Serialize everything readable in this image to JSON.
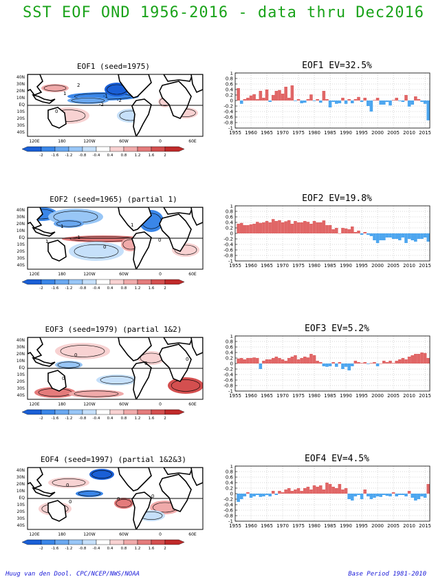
{
  "page_title": "SST EOF OND 1956-2016 - data thru Dec2016",
  "footer": {
    "credit": "Huug van den Dool. CPC/NCEP/NWS/NOAA",
    "base_period": "Base Period 1981-2010"
  },
  "map_axes": {
    "lat_labels": [
      "40N",
      "30N",
      "20N",
      "10N",
      "EQ",
      "10S",
      "20S",
      "30S",
      "40S"
    ],
    "lon_labels": [
      "120E",
      "180",
      "120W",
      "60W",
      "0",
      "60E"
    ]
  },
  "colorbar": {
    "labels": [
      "-2",
      "-1.6",
      "-1.2",
      "-0.8",
      "-0.4",
      "0.4",
      "0.8",
      "1.2",
      "1.6",
      "2"
    ],
    "colors": [
      "#1a5fd6",
      "#3a86e8",
      "#6aa8f0",
      "#98c6f6",
      "#c6e0fa",
      "#ffffff",
      "#f8d2d2",
      "#f0aaaa",
      "#e47b7b",
      "#d44f4f",
      "#c02a2a"
    ]
  },
  "colors": {
    "title": "#1aa31a",
    "footer": "#1a1ad8",
    "positive_bar": "#e06666",
    "negative_bar": "#4da6ef"
  },
  "panels": [
    {
      "map_title": "EOF1  (seed=1975)",
      "map_labels": [
        "2",
        "1",
        "-1",
        "-2",
        "-2",
        "0"
      ],
      "chart_data": {
        "type": "bar",
        "title": "EOF1  EV=32.5%",
        "x_tick_labels": [
          "1955",
          "1960",
          "1965",
          "1970",
          "1975",
          "1980",
          "1985",
          "1990",
          "1995",
          "2000",
          "2005",
          "2010",
          "2015"
        ],
        "y_tick_labels": [
          "1",
          "0.8",
          "0.6",
          "0.4",
          "0.2",
          "0",
          "-0.2",
          "-0.4",
          "-0.6",
          "-0.8",
          "-1"
        ],
        "ylim": [
          -1,
          1
        ],
        "grid": true,
        "x": [
          1956,
          1957,
          1958,
          1959,
          1960,
          1961,
          1962,
          1963,
          1964,
          1965,
          1966,
          1967,
          1968,
          1969,
          1970,
          1971,
          1972,
          1973,
          1974,
          1975,
          1976,
          1977,
          1978,
          1979,
          1980,
          1981,
          1982,
          1983,
          1984,
          1985,
          1986,
          1987,
          1988,
          1989,
          1990,
          1991,
          1992,
          1993,
          1994,
          1995,
          1996,
          1997,
          1998,
          1999,
          2000,
          2001,
          2002,
          2003,
          2004,
          2005,
          2006,
          2007,
          2008,
          2009,
          2010,
          2011,
          2012,
          2013,
          2014,
          2015,
          2016
        ],
        "values": [
          0.45,
          -0.12,
          0.05,
          0.1,
          0.18,
          0.23,
          0.05,
          0.35,
          0.1,
          0.4,
          -0.05,
          0.2,
          0.35,
          0.38,
          0.25,
          0.5,
          0.1,
          0.55,
          -0.02,
          0.05,
          -0.1,
          -0.08,
          0.05,
          0.22,
          -0.02,
          0.05,
          -0.08,
          0.35,
          0.05,
          -0.25,
          -0.05,
          -0.12,
          -0.1,
          0.1,
          -0.12,
          0.05,
          -0.1,
          0.05,
          0.13,
          -0.05,
          0.1,
          -0.2,
          -0.4,
          0.02,
          0.1,
          -0.15,
          -0.15,
          -0.05,
          -0.18,
          0.02,
          0.1,
          -0.02,
          -0.05,
          0.2,
          -0.22,
          -0.15,
          0.15,
          0.05,
          -0.05,
          -0.12,
          -0.72
        ]
      }
    },
    {
      "map_title": "EOF2  (seed=1965) (partial 1)",
      "map_labels": [
        "1",
        "-1",
        "1",
        "0",
        "1",
        "0"
      ],
      "chart_data": {
        "type": "bar",
        "title": "EOF2  EV=19.8%",
        "x_tick_labels": [
          "1955",
          "1960",
          "1965",
          "1970",
          "1975",
          "1980",
          "1985",
          "1990",
          "1995",
          "2000",
          "2005",
          "2010",
          "2015"
        ],
        "y_tick_labels": [
          "1",
          "0.8",
          "0.6",
          "0.4",
          "0.2",
          "0",
          "-0.2",
          "-0.4",
          "-0.6",
          "-0.8",
          "-1"
        ],
        "ylim": [
          -1,
          1
        ],
        "grid": true,
        "x": [
          1956,
          1957,
          1958,
          1959,
          1960,
          1961,
          1962,
          1963,
          1964,
          1965,
          1966,
          1967,
          1968,
          1969,
          1970,
          1971,
          1972,
          1973,
          1974,
          1975,
          1976,
          1977,
          1978,
          1979,
          1980,
          1981,
          1982,
          1983,
          1984,
          1985,
          1986,
          1987,
          1988,
          1989,
          1990,
          1991,
          1992,
          1993,
          1994,
          1995,
          1996,
          1997,
          1998,
          1999,
          2000,
          2001,
          2002,
          2003,
          2004,
          2005,
          2006,
          2007,
          2008,
          2009,
          2010,
          2011,
          2012,
          2013,
          2014,
          2015,
          2016
        ],
        "values": [
          0.35,
          0.38,
          0.3,
          0.3,
          0.33,
          0.35,
          0.42,
          0.38,
          0.4,
          0.45,
          0.4,
          0.52,
          0.45,
          0.48,
          0.4,
          0.44,
          0.48,
          0.35,
          0.45,
          0.4,
          0.4,
          0.45,
          0.42,
          0.35,
          0.45,
          0.4,
          0.4,
          0.47,
          0.3,
          0.3,
          0.15,
          0.2,
          0.0,
          0.2,
          0.18,
          0.15,
          0.25,
          0.05,
          0.1,
          -0.05,
          0.05,
          -0.05,
          -0.1,
          -0.25,
          -0.35,
          -0.25,
          -0.25,
          -0.15,
          -0.15,
          -0.2,
          -0.2,
          -0.25,
          -0.15,
          -0.35,
          -0.2,
          -0.25,
          -0.3,
          -0.2,
          -0.2,
          -0.15,
          -0.3
        ]
      }
    },
    {
      "map_title": "EOF3  (seed=1979) (partial 1&2)",
      "map_labels": [
        "0",
        "0",
        "0",
        "0"
      ],
      "chart_data": {
        "type": "bar",
        "title": "EOF3  EV=5.2%",
        "x_tick_labels": [
          "1955",
          "1960",
          "1965",
          "1970",
          "1975",
          "1980",
          "1985",
          "1990",
          "1995",
          "2000",
          "2005",
          "2010",
          "2015"
        ],
        "y_tick_labels": [
          "1",
          "0.8",
          "0.6",
          "0.4",
          "0.2",
          "0",
          "-0.2",
          "-0.4",
          "-0.6",
          "-0.8",
          "-1"
        ],
        "ylim": [
          -1,
          1
        ],
        "grid": true,
        "x": [
          1956,
          1957,
          1958,
          1959,
          1960,
          1961,
          1962,
          1963,
          1964,
          1965,
          1966,
          1967,
          1968,
          1969,
          1970,
          1971,
          1972,
          1973,
          1974,
          1975,
          1976,
          1977,
          1978,
          1979,
          1980,
          1981,
          1982,
          1983,
          1984,
          1985,
          1986,
          1987,
          1988,
          1989,
          1990,
          1991,
          1992,
          1993,
          1994,
          1995,
          1996,
          1997,
          1998,
          1999,
          2000,
          2001,
          2002,
          2003,
          2004,
          2005,
          2006,
          2007,
          2008,
          2009,
          2010,
          2011,
          2012,
          2013,
          2014,
          2015,
          2016
        ],
        "values": [
          0.18,
          0.2,
          0.15,
          0.2,
          0.2,
          0.22,
          0.2,
          -0.2,
          0.1,
          0.15,
          0.15,
          0.2,
          0.25,
          0.2,
          0.15,
          0.1,
          0.2,
          0.25,
          0.3,
          0.15,
          0.2,
          0.25,
          0.22,
          0.35,
          0.3,
          0.1,
          0.05,
          -0.1,
          -0.12,
          -0.1,
          0.05,
          -0.12,
          0.05,
          -0.2,
          -0.12,
          -0.25,
          -0.1,
          0.1,
          0.05,
          0.02,
          0.05,
          -0.02,
          0.02,
          0.05,
          -0.1,
          0.0,
          0.1,
          0.05,
          0.1,
          0.02,
          0.1,
          0.15,
          0.2,
          0.15,
          0.25,
          0.3,
          0.35,
          0.35,
          0.4,
          0.38,
          0.2
        ]
      }
    },
    {
      "map_title": "EOF4  (seed=1997) (partial 1&2&3)",
      "map_labels": [
        "0",
        "0",
        "0",
        "0"
      ],
      "chart_data": {
        "type": "bar",
        "title": "EOF4  EV=4.5%",
        "x_tick_labels": [
          "1955",
          "1960",
          "1965",
          "1970",
          "1975",
          "1980",
          "1985",
          "1990",
          "1995",
          "2000",
          "2005",
          "2010",
          "2015"
        ],
        "y_tick_labels": [
          "1",
          "0.8",
          "0.6",
          "0.4",
          "0.2",
          "0",
          "-0.2",
          "-0.4",
          "-0.6",
          "-0.8",
          "-1"
        ],
        "ylim": [
          -1,
          1
        ],
        "grid": true,
        "x": [
          1956,
          1957,
          1958,
          1959,
          1960,
          1961,
          1962,
          1963,
          1964,
          1965,
          1966,
          1967,
          1968,
          1969,
          1970,
          1971,
          1972,
          1973,
          1974,
          1975,
          1976,
          1977,
          1978,
          1979,
          1980,
          1981,
          1982,
          1983,
          1984,
          1985,
          1986,
          1987,
          1988,
          1989,
          1990,
          1991,
          1992,
          1993,
          1994,
          1995,
          1996,
          1997,
          1998,
          1999,
          2000,
          2001,
          2002,
          2003,
          2004,
          2005,
          2006,
          2007,
          2008,
          2009,
          2010,
          2011,
          2012,
          2013,
          2014,
          2015,
          2016
        ],
        "values": [
          -0.3,
          -0.2,
          -0.1,
          0.05,
          -0.15,
          -0.1,
          -0.05,
          -0.12,
          -0.1,
          -0.05,
          -0.1,
          0.1,
          -0.05,
          0.1,
          0.05,
          0.15,
          0.2,
          0.1,
          0.15,
          0.2,
          0.1,
          0.2,
          0.25,
          0.15,
          0.3,
          0.25,
          0.3,
          0.15,
          0.4,
          0.35,
          0.25,
          0.2,
          0.35,
          0.15,
          0.2,
          -0.2,
          -0.25,
          -0.1,
          -0.05,
          -0.2,
          0.15,
          -0.1,
          -0.2,
          -0.15,
          -0.1,
          -0.12,
          -0.05,
          -0.08,
          -0.1,
          0.05,
          -0.1,
          -0.05,
          -0.05,
          -0.1,
          0.1,
          -0.15,
          -0.25,
          -0.2,
          -0.1,
          -0.15,
          0.35
        ]
      }
    }
  ]
}
